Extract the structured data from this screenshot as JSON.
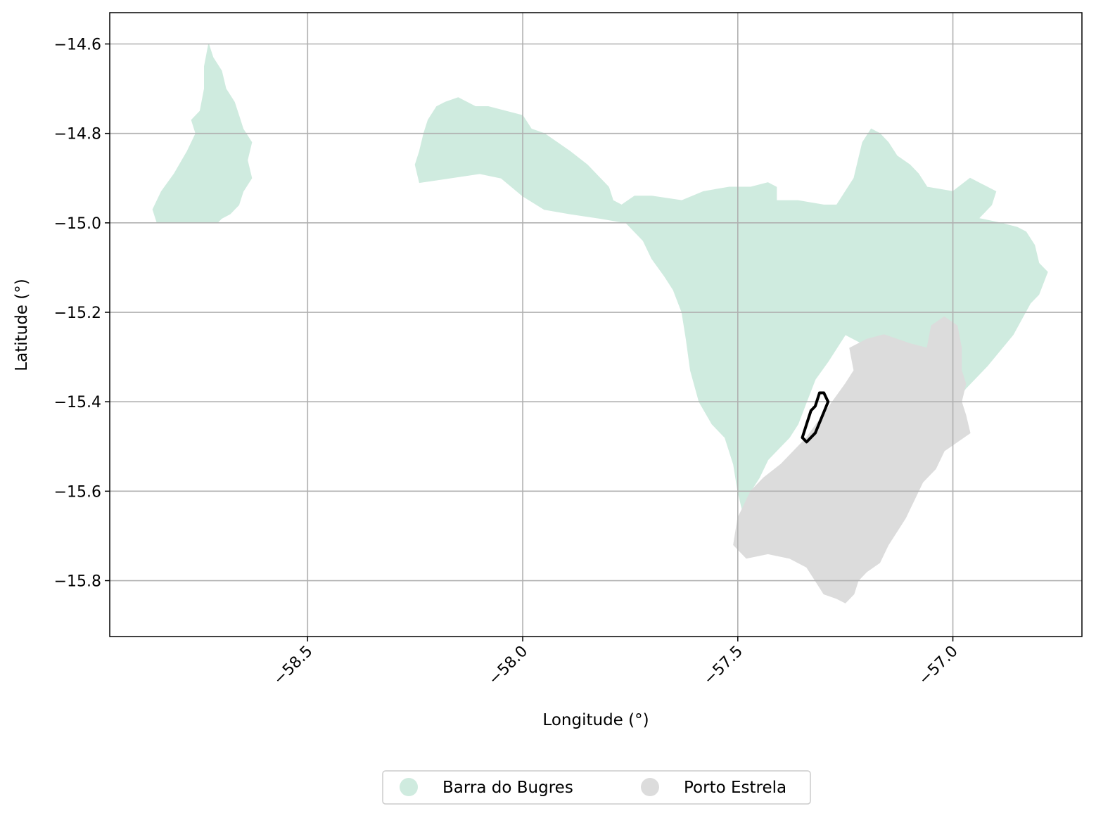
{
  "chart_data": {
    "type": "map",
    "xlabel": "Longitude (°)",
    "ylabel": "Latitude (°)",
    "xlim": [
      -58.96,
      -56.7
    ],
    "ylim": [
      -15.925,
      -14.53
    ],
    "xticks": [
      -58.5,
      -58.0,
      -57.5,
      -57.0
    ],
    "yticks": [
      -14.6,
      -14.8,
      -15.0,
      -15.2,
      -15.4,
      -15.6,
      -15.8
    ],
    "xtick_labels": [
      "−58.5",
      "−58.0",
      "−57.5",
      "−57.0"
    ],
    "ytick_labels": [
      "−14.6",
      "−14.8",
      "−15.0",
      "−15.2",
      "−15.4",
      "−15.6",
      "−15.8"
    ],
    "grid": true,
    "legend_position": "bottom-center",
    "regions": [
      {
        "name": "Barra do Bugres",
        "color": "#cfebdf",
        "polygons": [
          [
            [
              -58.85,
              -15.0
            ],
            [
              -58.86,
              -14.97
            ],
            [
              -58.84,
              -14.93
            ],
            [
              -58.81,
              -14.89
            ],
            [
              -58.78,
              -14.84
            ],
            [
              -58.76,
              -14.8
            ],
            [
              -58.77,
              -14.77
            ],
            [
              -58.75,
              -14.75
            ],
            [
              -58.74,
              -14.7
            ],
            [
              -58.74,
              -14.65
            ],
            [
              -58.73,
              -14.6
            ],
            [
              -58.72,
              -14.63
            ],
            [
              -58.7,
              -14.66
            ],
            [
              -58.69,
              -14.7
            ],
            [
              -58.67,
              -14.73
            ],
            [
              -58.66,
              -14.76
            ],
            [
              -58.65,
              -14.79
            ],
            [
              -58.63,
              -14.82
            ],
            [
              -58.64,
              -14.86
            ],
            [
              -58.63,
              -14.9
            ],
            [
              -58.65,
              -14.93
            ],
            [
              -58.66,
              -14.96
            ],
            [
              -58.68,
              -14.98
            ],
            [
              -58.7,
              -14.99
            ],
            [
              -58.71,
              -15.0
            ]
          ],
          [
            [
              -58.24,
              -14.91
            ],
            [
              -58.25,
              -14.87
            ],
            [
              -58.24,
              -14.84
            ],
            [
              -58.23,
              -14.8
            ],
            [
              -58.22,
              -14.77
            ],
            [
              -58.2,
              -14.74
            ],
            [
              -58.18,
              -14.73
            ],
            [
              -58.15,
              -14.72
            ],
            [
              -58.11,
              -14.74
            ],
            [
              -58.08,
              -14.74
            ],
            [
              -58.04,
              -14.75
            ],
            [
              -58.0,
              -14.76
            ],
            [
              -57.98,
              -14.79
            ],
            [
              -57.95,
              -14.8
            ],
            [
              -57.92,
              -14.82
            ],
            [
              -57.89,
              -14.84
            ],
            [
              -57.85,
              -14.87
            ],
            [
              -57.82,
              -14.9
            ],
            [
              -57.8,
              -14.92
            ],
            [
              -57.79,
              -14.95
            ],
            [
              -57.77,
              -14.96
            ],
            [
              -57.74,
              -14.94
            ],
            [
              -57.7,
              -14.94
            ],
            [
              -57.63,
              -14.95
            ],
            [
              -57.58,
              -14.93
            ],
            [
              -57.52,
              -14.92
            ],
            [
              -57.47,
              -14.92
            ],
            [
              -57.43,
              -14.91
            ],
            [
              -57.41,
              -14.92
            ],
            [
              -57.41,
              -14.95
            ],
            [
              -57.36,
              -14.95
            ],
            [
              -57.3,
              -14.96
            ],
            [
              -57.27,
              -14.96
            ],
            [
              -57.25,
              -14.93
            ],
            [
              -57.23,
              -14.9
            ],
            [
              -57.22,
              -14.86
            ],
            [
              -57.21,
              -14.82
            ],
            [
              -57.19,
              -14.79
            ],
            [
              -57.17,
              -14.8
            ],
            [
              -57.15,
              -14.82
            ],
            [
              -57.13,
              -14.85
            ],
            [
              -57.1,
              -14.87
            ],
            [
              -57.08,
              -14.89
            ],
            [
              -57.06,
              -14.92
            ],
            [
              -57.0,
              -14.93
            ],
            [
              -56.96,
              -14.9
            ],
            [
              -56.9,
              -14.93
            ],
            [
              -56.91,
              -14.96
            ],
            [
              -56.94,
              -14.99
            ],
            [
              -56.89,
              -15.0
            ],
            [
              -56.85,
              -15.01
            ],
            [
              -56.83,
              -15.02
            ],
            [
              -56.81,
              -15.05
            ],
            [
              -56.8,
              -15.09
            ],
            [
              -56.78,
              -15.11
            ],
            [
              -56.8,
              -15.16
            ],
            [
              -56.82,
              -15.18
            ],
            [
              -56.86,
              -15.25
            ],
            [
              -56.92,
              -15.32
            ],
            [
              -56.97,
              -15.37
            ],
            [
              -57.0,
              -15.41
            ],
            [
              -57.05,
              -15.4
            ],
            [
              -57.1,
              -15.38
            ],
            [
              -57.15,
              -15.35
            ],
            [
              -57.18,
              -15.3
            ],
            [
              -57.21,
              -15.27
            ],
            [
              -57.25,
              -15.25
            ],
            [
              -57.29,
              -15.31
            ],
            [
              -57.32,
              -15.35
            ],
            [
              -57.34,
              -15.4
            ],
            [
              -57.36,
              -15.45
            ],
            [
              -57.38,
              -15.48
            ],
            [
              -57.4,
              -15.5
            ],
            [
              -57.43,
              -15.53
            ],
            [
              -57.45,
              -15.57
            ],
            [
              -57.47,
              -15.6
            ],
            [
              -57.49,
              -15.64
            ],
            [
              -57.5,
              -15.6
            ],
            [
              -57.51,
              -15.54
            ],
            [
              -57.53,
              -15.48
            ],
            [
              -57.56,
              -15.45
            ],
            [
              -57.59,
              -15.4
            ],
            [
              -57.61,
              -15.33
            ],
            [
              -57.62,
              -15.26
            ],
            [
              -57.63,
              -15.2
            ],
            [
              -57.65,
              -15.15
            ],
            [
              -57.67,
              -15.12
            ],
            [
              -57.7,
              -15.08
            ],
            [
              -57.72,
              -15.04
            ],
            [
              -57.76,
              -15.0
            ],
            [
              -57.82,
              -14.99
            ],
            [
              -57.89,
              -14.98
            ],
            [
              -57.95,
              -14.97
            ],
            [
              -58.0,
              -14.94
            ],
            [
              -58.05,
              -14.9
            ],
            [
              -58.1,
              -14.89
            ],
            [
              -58.24,
              -14.91
            ]
          ]
        ]
      },
      {
        "name": "Porto Estrela",
        "color": "#dcdcdc",
        "polygons": [
          [
            [
              -57.51,
              -15.72
            ],
            [
              -57.5,
              -15.66
            ],
            [
              -57.47,
              -15.6
            ],
            [
              -57.44,
              -15.57
            ],
            [
              -57.4,
              -15.54
            ],
            [
              -57.37,
              -15.51
            ],
            [
              -57.34,
              -15.48
            ],
            [
              -57.31,
              -15.44
            ],
            [
              -57.28,
              -15.4
            ],
            [
              -57.25,
              -15.36
            ],
            [
              -57.23,
              -15.33
            ],
            [
              -57.24,
              -15.28
            ],
            [
              -57.2,
              -15.26
            ],
            [
              -57.16,
              -15.25
            ],
            [
              -57.1,
              -15.27
            ],
            [
              -57.06,
              -15.28
            ],
            [
              -57.05,
              -15.23
            ],
            [
              -57.02,
              -15.21
            ],
            [
              -56.99,
              -15.23
            ],
            [
              -56.98,
              -15.28
            ],
            [
              -56.98,
              -15.33
            ],
            [
              -56.97,
              -15.36
            ],
            [
              -56.98,
              -15.4
            ],
            [
              -56.97,
              -15.43
            ],
            [
              -56.96,
              -15.47
            ],
            [
              -56.99,
              -15.49
            ],
            [
              -57.02,
              -15.51
            ],
            [
              -57.04,
              -15.55
            ],
            [
              -57.07,
              -15.58
            ],
            [
              -57.09,
              -15.62
            ],
            [
              -57.11,
              -15.66
            ],
            [
              -57.13,
              -15.69
            ],
            [
              -57.15,
              -15.72
            ],
            [
              -57.17,
              -15.76
            ],
            [
              -57.2,
              -15.78
            ],
            [
              -57.22,
              -15.8
            ],
            [
              -57.23,
              -15.83
            ],
            [
              -57.25,
              -15.85
            ],
            [
              -57.27,
              -15.84
            ],
            [
              -57.3,
              -15.83
            ],
            [
              -57.32,
              -15.8
            ],
            [
              -57.34,
              -15.77
            ],
            [
              -57.38,
              -15.75
            ],
            [
              -57.43,
              -15.74
            ],
            [
              -57.48,
              -15.75
            ],
            [
              -57.51,
              -15.72
            ]
          ]
        ]
      }
    ],
    "outline": {
      "color": "#000000",
      "path": [
        [
          -57.3,
          -15.38
        ],
        [
          -57.29,
          -15.4
        ],
        [
          -57.32,
          -15.47
        ],
        [
          -57.34,
          -15.49
        ],
        [
          -57.35,
          -15.48
        ],
        [
          -57.34,
          -15.45
        ],
        [
          -57.33,
          -15.42
        ],
        [
          -57.32,
          -15.41
        ],
        [
          -57.31,
          -15.38
        ],
        [
          -57.3,
          -15.38
        ]
      ]
    }
  }
}
